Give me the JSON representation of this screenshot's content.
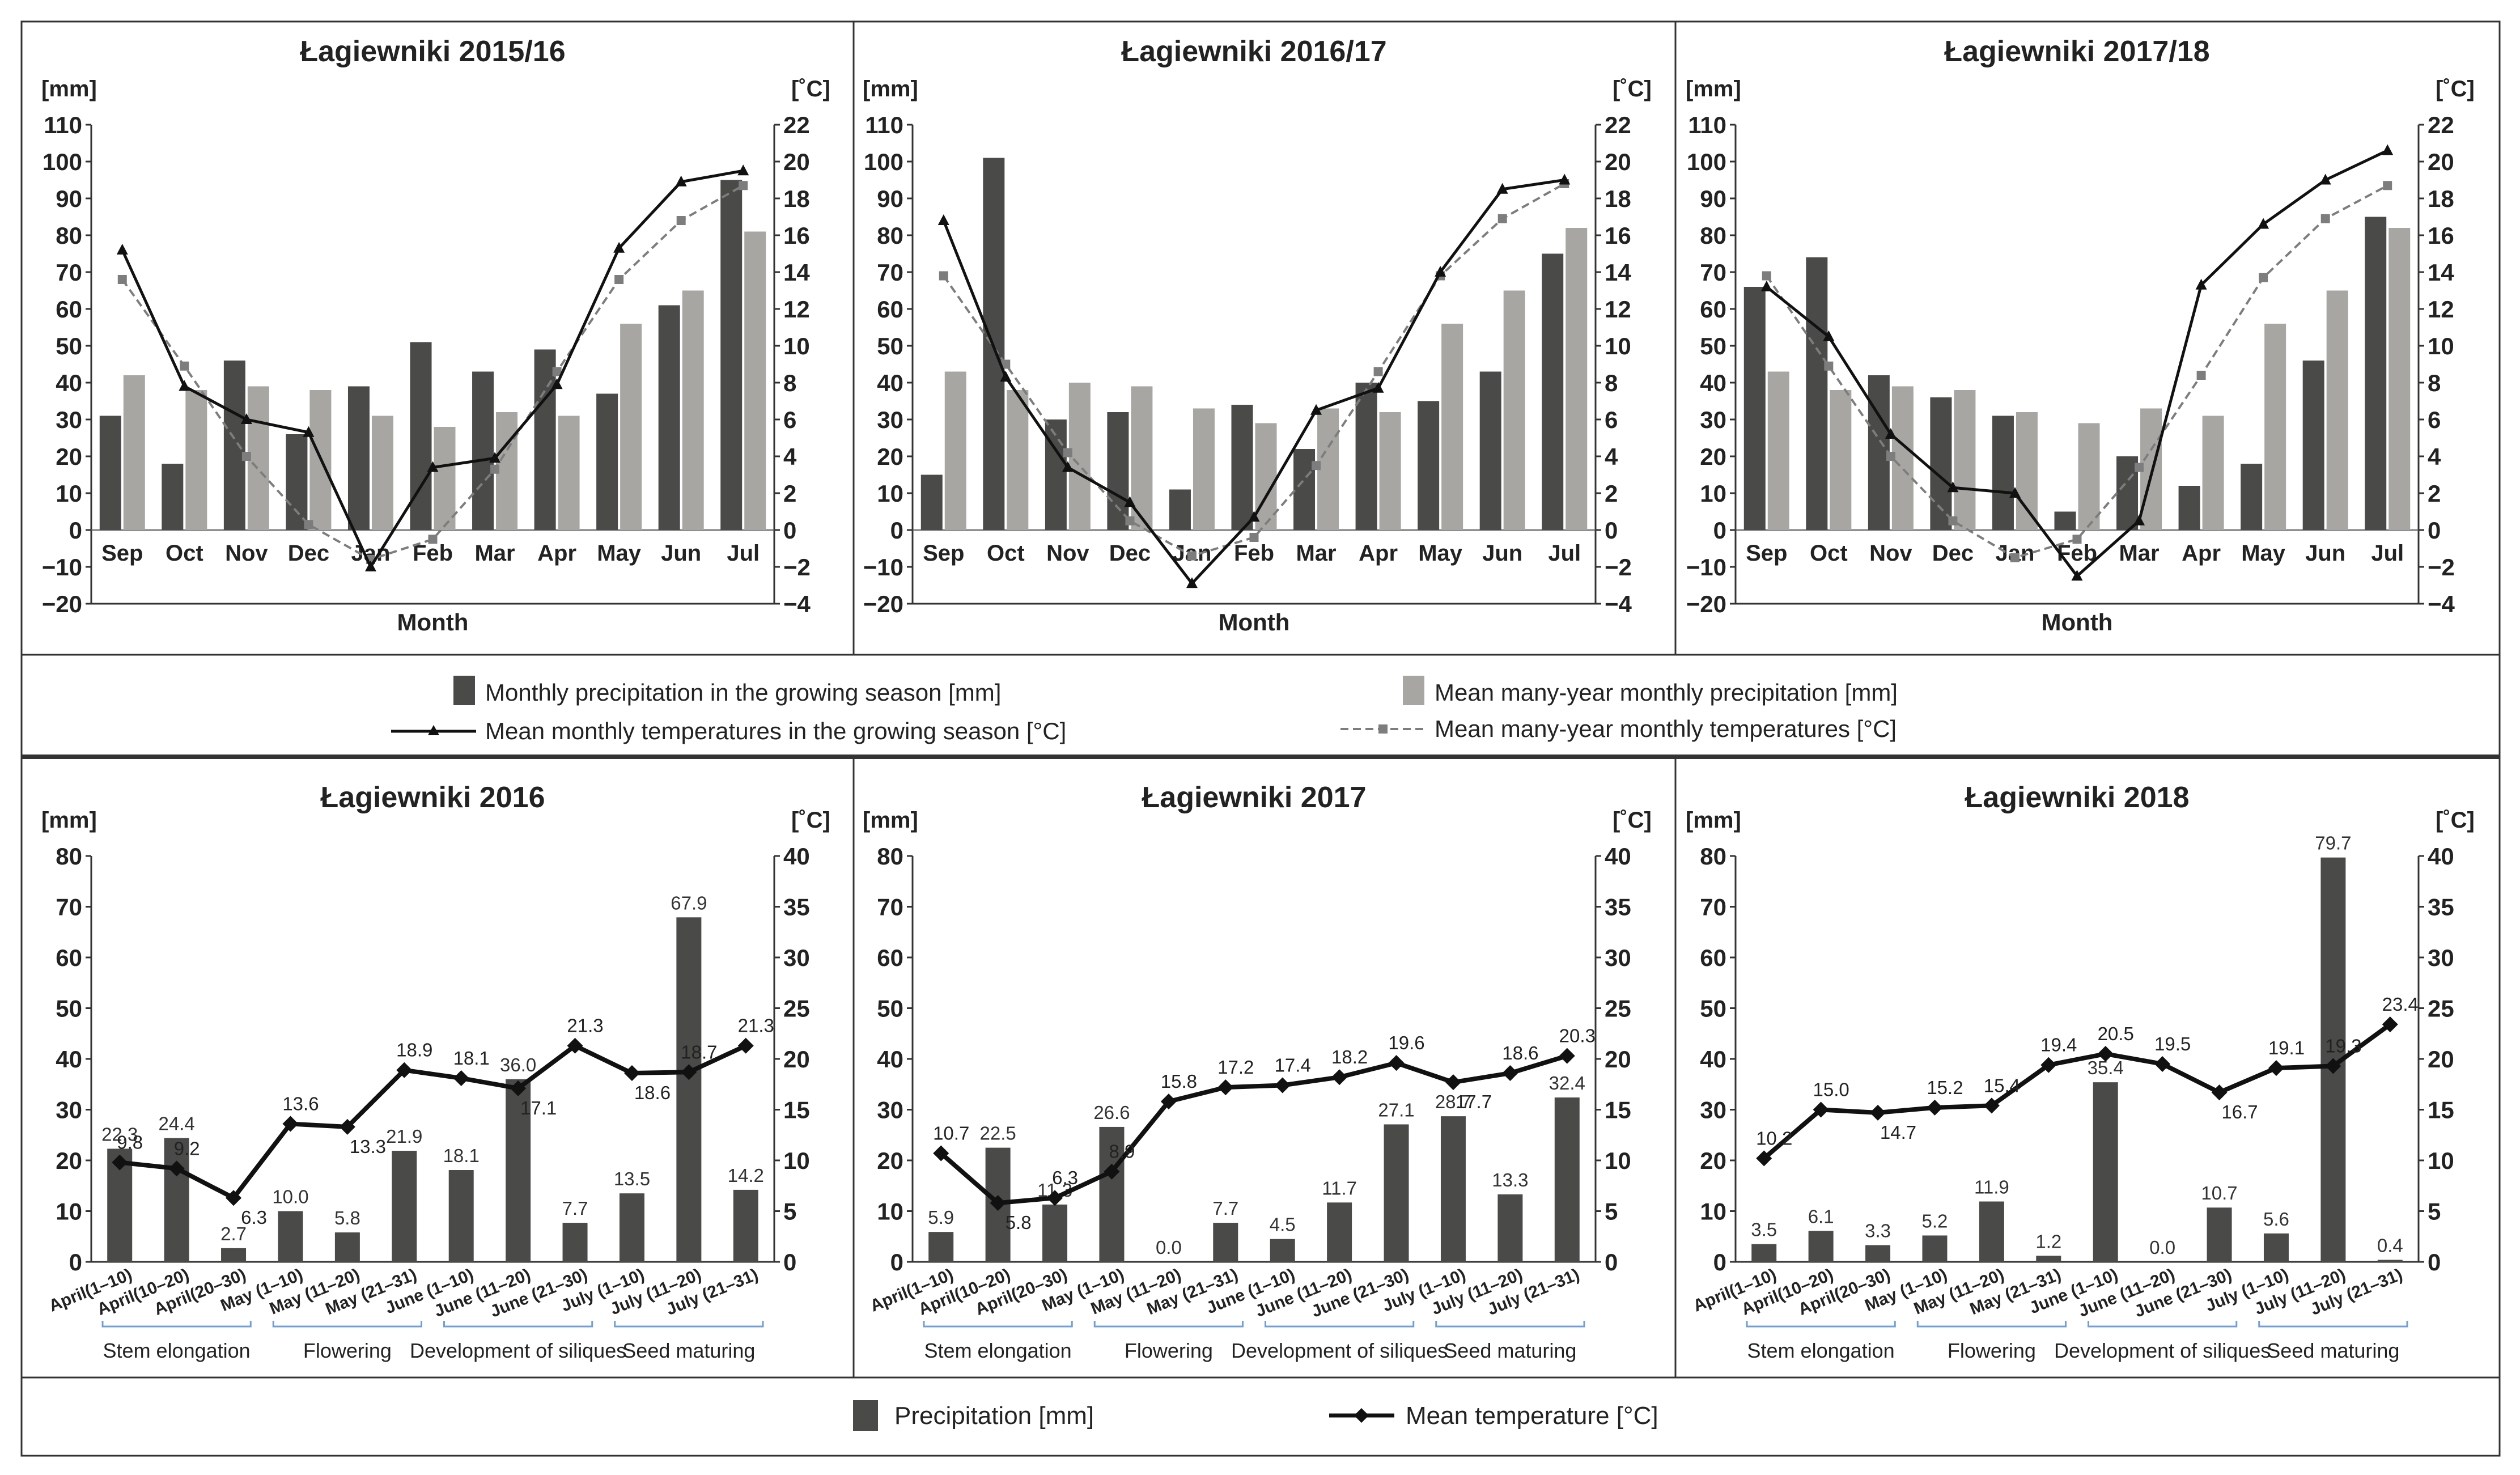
{
  "colors": {
    "precip": "#4a4a48",
    "mean_precip": "#a8a6a3",
    "temp": "#111111",
    "mean_temp": "#7d7d7d"
  },
  "legend_top": {
    "precip": "Monthly precipitation in the growing season [mm]",
    "mean_precip": "Mean many-year monthly precipitation [mm]",
    "temp": "Mean monthly temperatures in the growing season [°C]",
    "mean_temp": "Mean many-year monthly temperatures [°C]"
  },
  "legend_bottom": {
    "precip": "Precipitation [mm]",
    "temp": "Mean temperature [°C]"
  },
  "chart_data": [
    {
      "type": "bar+line",
      "title": "Łagiewniki 2015/16",
      "xlabel": "Month",
      "ylabel_left": "[mm]",
      "ylabel_right": "[˚C]",
      "ylim": [
        -20,
        110
      ],
      "y2lim": [
        -4,
        22
      ],
      "y_ticks": [
        "−20",
        "−10",
        "0",
        "10",
        "20",
        "30",
        "40",
        "50",
        "60",
        "70",
        "80",
        "90",
        "100",
        "110"
      ],
      "y2_ticks": [
        "−4",
        "−2",
        "0",
        "2",
        "4",
        "6",
        "8",
        "10",
        "12",
        "14",
        "16",
        "18",
        "20",
        "22"
      ],
      "categories": [
        "Sep",
        "Oct",
        "Nov",
        "Dec",
        "Jan",
        "Feb",
        "Mar",
        "Apr",
        "May",
        "Jun",
        "Jul"
      ],
      "series": [
        {
          "name": "precip",
          "values": [
            31,
            18,
            46,
            26,
            39,
            51,
            43,
            49,
            37,
            61,
            95
          ]
        },
        {
          "name": "mean_precip",
          "values": [
            42,
            38,
            39,
            38,
            31,
            28,
            32,
            31,
            56,
            65,
            81
          ]
        },
        {
          "name": "temp",
          "values": [
            15.2,
            7.8,
            6.0,
            5.3,
            -2.0,
            3.4,
            3.9,
            7.9,
            15.3,
            18.9,
            19.5
          ]
        },
        {
          "name": "mean_temp",
          "values": [
            13.6,
            8.9,
            4.0,
            0.3,
            -1.6,
            -0.5,
            3.3,
            8.6,
            13.6,
            16.8,
            18.7
          ]
        }
      ]
    },
    {
      "type": "bar+line",
      "title": "Łagiewniki 2016/17",
      "xlabel": "Month",
      "ylabel_left": "[mm]",
      "ylabel_right": "[˚C]",
      "ylim": [
        -20,
        110
      ],
      "y2lim": [
        -4,
        22
      ],
      "y_ticks": [
        "−20",
        "−10",
        "0",
        "10",
        "20",
        "30",
        "40",
        "50",
        "60",
        "70",
        "80",
        "90",
        "100",
        "110"
      ],
      "y2_ticks": [
        "−4",
        "−2",
        "0",
        "2",
        "4",
        "6",
        "8",
        "10",
        "12",
        "14",
        "16",
        "18",
        "20",
        "22"
      ],
      "categories": [
        "Sep",
        "Oct",
        "Nov",
        "Dec",
        "Jan",
        "Feb",
        "Mar",
        "Apr",
        "May",
        "Jun",
        "Jul"
      ],
      "series": [
        {
          "name": "precip",
          "values": [
            15,
            101,
            30,
            32,
            11,
            34,
            22,
            40,
            35,
            43,
            75
          ]
        },
        {
          "name": "mean_precip",
          "values": [
            43,
            38,
            40,
            39,
            33,
            29,
            33,
            32,
            56,
            65,
            82
          ]
        },
        {
          "name": "temp",
          "values": [
            16.8,
            8.3,
            3.4,
            1.5,
            -2.9,
            0.7,
            6.5,
            7.7,
            14.0,
            18.5,
            19.0
          ]
        },
        {
          "name": "mean_temp",
          "values": [
            13.8,
            9.0,
            4.2,
            0.5,
            -1.4,
            -0.4,
            3.5,
            8.6,
            13.8,
            16.9,
            18.8
          ]
        }
      ]
    },
    {
      "type": "bar+line",
      "title": "Łagiewniki 2017/18",
      "xlabel": "Month",
      "ylabel_left": "[mm]",
      "ylabel_right": "[˚C]",
      "ylim": [
        -20,
        110
      ],
      "y2lim": [
        -4,
        22
      ],
      "y_ticks": [
        "−20",
        "−10",
        "0",
        "10",
        "20",
        "30",
        "40",
        "50",
        "60",
        "70",
        "80",
        "90",
        "100",
        "110"
      ],
      "y2_ticks": [
        "−4",
        "−2",
        "0",
        "2",
        "4",
        "6",
        "8",
        "10",
        "12",
        "14",
        "16",
        "18",
        "20",
        "22"
      ],
      "categories": [
        "Sep",
        "Oct",
        "Nov",
        "Dec",
        "Jan",
        "Feb",
        "Mar",
        "Apr",
        "May",
        "Jun",
        "Jul"
      ],
      "series": [
        {
          "name": "precip",
          "values": [
            66,
            74,
            42,
            36,
            31,
            5,
            20,
            12,
            18,
            46,
            85
          ]
        },
        {
          "name": "mean_precip",
          "values": [
            43,
            38,
            39,
            38,
            32,
            29,
            33,
            31,
            56,
            65,
            82
          ]
        },
        {
          "name": "temp",
          "values": [
            13.2,
            10.5,
            5.2,
            2.3,
            2.0,
            -2.5,
            0.5,
            13.3,
            16.6,
            19.0,
            20.6
          ]
        },
        {
          "name": "mean_temp",
          "values": [
            13.8,
            8.9,
            4.0,
            0.5,
            -1.5,
            -0.5,
            3.4,
            8.4,
            13.7,
            16.9,
            18.7
          ]
        }
      ]
    },
    {
      "type": "bar+line",
      "title": "Łagiewniki 2016",
      "ylabel_left": "[mm]",
      "ylabel_right": "[˚C]",
      "ylim": [
        0,
        80
      ],
      "y2lim": [
        0,
        40
      ],
      "y_ticks": [
        "0",
        "10",
        "20",
        "30",
        "40",
        "50",
        "60",
        "70",
        "80"
      ],
      "y2_ticks": [
        "0",
        "5",
        "10",
        "15",
        "20",
        "25",
        "30",
        "35",
        "40"
      ],
      "categories": [
        "April(1–10)",
        "April(10–20)",
        "April(20–30)",
        "May (1–10)",
        "May (11–20)",
        "May (21–31)",
        "June (1–10)",
        "June (11–20)",
        "June (21–30)",
        "July (1–10)",
        "July (11–20)",
        "July (21–31)"
      ],
      "series": [
        {
          "name": "precip",
          "values": [
            22.3,
            24.4,
            2.7,
            10.0,
            5.8,
            21.9,
            18.1,
            36.0,
            7.7,
            13.5,
            67.9,
            14.2
          ],
          "labels": [
            "22.3",
            "24.4",
            "2.7",
            "10.0",
            "5.8",
            "21.9",
            "18.1",
            "36.0",
            "7.7",
            "13.5",
            "67.9",
            "14.2"
          ]
        },
        {
          "name": "temp",
          "values": [
            9.8,
            9.2,
            6.3,
            13.6,
            13.3,
            18.9,
            18.1,
            17.1,
            21.3,
            18.6,
            18.7,
            21.3
          ],
          "labels": [
            "9.8",
            "9.2",
            "6.3",
            "13.6",
            "13.3",
            "18.9",
            "18.1",
            "17.1",
            "21.3",
            "18.6",
            "18.7",
            "21.3"
          ]
        }
      ],
      "phases": [
        {
          "label": "Stem elongation",
          "start": 0,
          "end": 2
        },
        {
          "label": "Flowering",
          "start": 3,
          "end": 5
        },
        {
          "label": "Development of siliques",
          "start": 6,
          "end": 8
        },
        {
          "label": "Seed maturing",
          "start": 9,
          "end": 11
        }
      ]
    },
    {
      "type": "bar+line",
      "title": "Łagiewniki 2017",
      "ylabel_left": "[mm]",
      "ylabel_right": "[˚C]",
      "ylim": [
        0,
        80
      ],
      "y2lim": [
        0,
        40
      ],
      "y_ticks": [
        "0",
        "10",
        "20",
        "30",
        "40",
        "50",
        "60",
        "70",
        "80"
      ],
      "y2_ticks": [
        "0",
        "5",
        "10",
        "15",
        "20",
        "25",
        "30",
        "35",
        "40"
      ],
      "categories": [
        "April(1–10)",
        "April(10–20)",
        "April(20–30)",
        "May (1–10)",
        "May (11–20)",
        "May (21–31)",
        "June (1–10)",
        "June (11–20)",
        "June (21–30)",
        "July (1–10)",
        "July (11–20)",
        "July (21–31)"
      ],
      "series": [
        {
          "name": "precip",
          "values": [
            5.9,
            22.5,
            11.3,
            26.6,
            0.0,
            7.7,
            4.5,
            11.7,
            27.1,
            28.7,
            13.3,
            32.4
          ],
          "labels": [
            "5.9",
            "22.5",
            "11.3",
            "26.6",
            "0.0",
            "7.7",
            "4.5",
            "11.7",
            "27.1",
            "28.7",
            "13.3",
            "32.4"
          ]
        },
        {
          "name": "temp",
          "values": [
            10.7,
            5.8,
            6.3,
            8.9,
            15.8,
            17.2,
            17.4,
            18.2,
            19.6,
            17.7,
            18.6,
            20.3
          ],
          "labels": [
            "10.7",
            "5.8",
            "6.3",
            "8.9",
            "15.8",
            "17.2",
            "17.4",
            "18.2",
            "19.6",
            "17.7",
            "18.6",
            "20.3"
          ]
        }
      ],
      "phases": [
        {
          "label": "Stem elongation",
          "start": 0,
          "end": 2
        },
        {
          "label": "Flowering",
          "start": 3,
          "end": 5
        },
        {
          "label": "Development of siliques",
          "start": 6,
          "end": 8
        },
        {
          "label": "Seed maturing",
          "start": 9,
          "end": 11
        }
      ]
    },
    {
      "type": "bar+line",
      "title": "Łagiewniki 2018",
      "ylabel_left": "[mm]",
      "ylabel_right": "[˚C]",
      "ylim": [
        0,
        80
      ],
      "y2lim": [
        0,
        40
      ],
      "y_ticks": [
        "0",
        "10",
        "20",
        "30",
        "40",
        "50",
        "60",
        "70",
        "80"
      ],
      "y2_ticks": [
        "0",
        "5",
        "10",
        "15",
        "20",
        "25",
        "30",
        "35",
        "40"
      ],
      "categories": [
        "April(1–10)",
        "April(10–20)",
        "April(20–30)",
        "May (1–10)",
        "May (11–20)",
        "May (21–31)",
        "June (1–10)",
        "June (11–20)",
        "June (21–30)",
        "July (1–10)",
        "July (11–20)",
        "July (21–31)"
      ],
      "series": [
        {
          "name": "precip",
          "values": [
            3.5,
            6.1,
            3.3,
            5.2,
            11.9,
            1.2,
            35.4,
            0.0,
            10.7,
            5.6,
            79.7,
            0.4
          ],
          "labels": [
            "3.5",
            "6.1",
            "3.3",
            "5.2",
            "11.9",
            "1.2",
            "35.4",
            "0.0",
            "10.7",
            "5.6",
            "79.7",
            "0.4"
          ]
        },
        {
          "name": "temp",
          "values": [
            10.2,
            15.0,
            14.7,
            15.2,
            15.4,
            19.4,
            20.5,
            19.5,
            16.7,
            19.1,
            19.3,
            23.4
          ],
          "labels": [
            "10.2",
            "15.0",
            "14.7",
            "15.2",
            "15.4",
            "19.4",
            "20.5",
            "19.5",
            "16.7",
            "19.1",
            "19.3",
            "23.4"
          ]
        }
      ],
      "phases": [
        {
          "label": "Stem elongation",
          "start": 0,
          "end": 2
        },
        {
          "label": "Flowering",
          "start": 3,
          "end": 5
        },
        {
          "label": "Development of siliques",
          "start": 6,
          "end": 8
        },
        {
          "label": "Seed maturing",
          "start": 9,
          "end": 11
        }
      ]
    }
  ]
}
